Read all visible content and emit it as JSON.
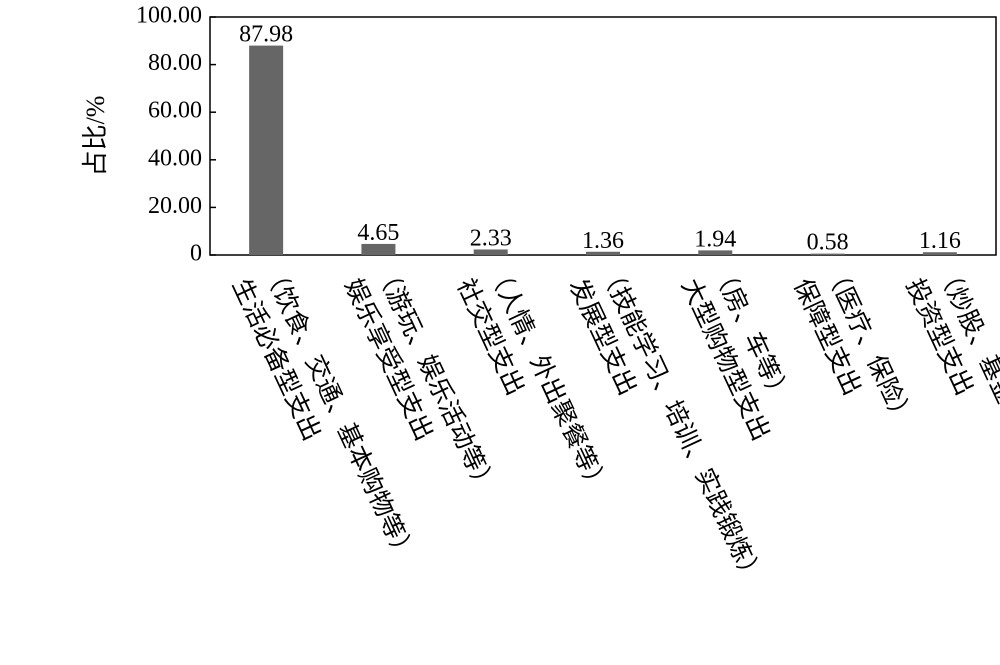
{
  "chart_data": {
    "type": "bar",
    "y_label": "占比/%",
    "categories": [
      [
        "（饮食、交通、基本购物等）",
        "生活必备型支出"
      ],
      [
        "（游玩、娱乐活动等）",
        "娱乐享受型支出"
      ],
      [
        "（人情、外出聚餐等）",
        "社交型支出"
      ],
      [
        "（技能学习、培训、实践锻炼）",
        "发展型支出"
      ],
      [
        "（房、车等）",
        "大型购物型支出"
      ],
      [
        "（医疗、保险）",
        "保障型支出"
      ],
      [
        "（炒股、基金等）",
        "投资型支出"
      ]
    ],
    "values": [
      87.98,
      4.65,
      2.33,
      1.36,
      1.94,
      0.58,
      1.16
    ],
    "color": "#666666",
    "ylim": [
      0,
      100
    ],
    "yticks": [
      0,
      {
        "value": 20,
        "label": "20.00"
      },
      {
        "value": 40,
        "label": "40.00"
      },
      {
        "value": 60,
        "label": "60.00"
      },
      {
        "value": 80,
        "label": "80.00"
      },
      {
        "value": 100,
        "label": "100.00"
      }
    ],
    "grid": false
  }
}
